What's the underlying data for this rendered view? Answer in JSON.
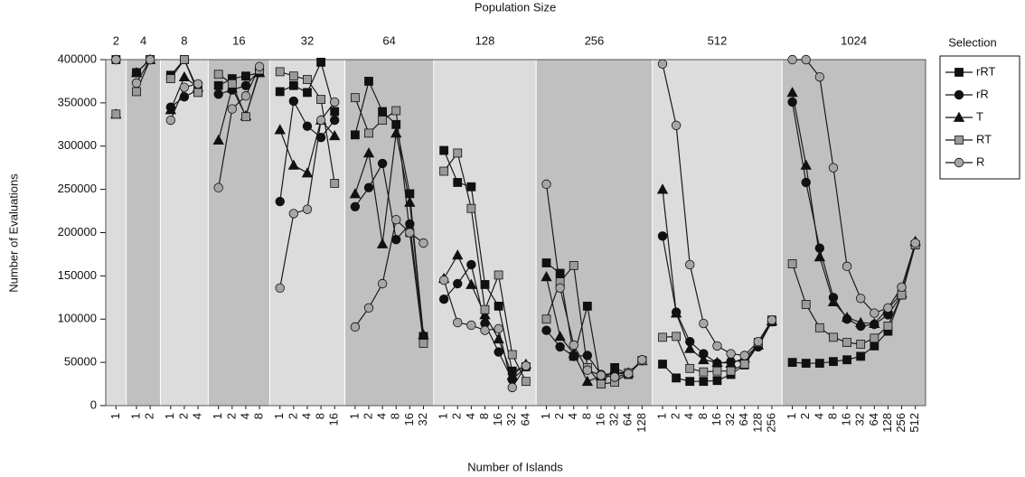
{
  "chart_data": {
    "type": "line",
    "top_axis_label": "Population Size",
    "x_axis_label": "Number of Islands",
    "y_axis_label": "Number of Evaluations",
    "legend_title": "Selection",
    "legend_position": "right",
    "ylim": [
      0,
      400000
    ],
    "yticks": [
      0,
      50000,
      100000,
      150000,
      200000,
      250000,
      300000,
      350000,
      400000
    ],
    "groups": [
      {
        "label": "2",
        "categories": [
          "1"
        ]
      },
      {
        "label": "4",
        "categories": [
          "1",
          "2"
        ]
      },
      {
        "label": "8",
        "categories": [
          "1",
          "2",
          "4"
        ]
      },
      {
        "label": "16",
        "categories": [
          "1",
          "2",
          "4",
          "8"
        ]
      },
      {
        "label": "32",
        "categories": [
          "1",
          "2",
          "4",
          "8",
          "16"
        ]
      },
      {
        "label": "64",
        "categories": [
          "1",
          "2",
          "4",
          "8",
          "16",
          "32"
        ]
      },
      {
        "label": "128",
        "categories": [
          "1",
          "2",
          "4",
          "8",
          "16",
          "32",
          "64"
        ]
      },
      {
        "label": "256",
        "categories": [
          "1",
          "2",
          "4",
          "8",
          "16",
          "32",
          "64",
          "128"
        ]
      },
      {
        "label": "512",
        "categories": [
          "1",
          "2",
          "4",
          "8",
          "16",
          "32",
          "64",
          "128",
          "256"
        ]
      },
      {
        "label": "1024",
        "categories": [
          "1",
          "2",
          "4",
          "8",
          "16",
          "32",
          "64",
          "128",
          "256",
          "512"
        ]
      }
    ],
    "series": [
      {
        "name": "rRT",
        "marker": "square",
        "color": "#111111",
        "values": [
          [
            400000
          ],
          [
            385000,
            400000
          ],
          [
            382000,
            400000,
            365000
          ],
          [
            370000,
            378000,
            381000,
            385000
          ],
          [
            363000,
            370000,
            362000,
            397000,
            340000
          ],
          [
            313000,
            375000,
            340000,
            325000,
            245000,
            80000
          ],
          [
            295000,
            258000,
            253000,
            140000,
            115000,
            40000,
            45000
          ],
          [
            165000,
            153000,
            57000,
            115000,
            25000,
            44000,
            36000,
            52000
          ],
          [
            48000,
            32000,
            28000,
            28000,
            29000,
            36000,
            47000,
            70000,
            97000
          ],
          [
            50000,
            49000,
            49000,
            51000,
            53000,
            57000,
            69000,
            86000,
            128000,
            186000
          ]
        ]
      },
      {
        "name": "rR",
        "marker": "circle",
        "color": "#111111",
        "values": [
          [
            400000
          ],
          [
            385000,
            400000
          ],
          [
            345000,
            357000,
            365000
          ],
          [
            360000,
            365000,
            370000,
            388000
          ],
          [
            236000,
            352000,
            323000,
            310000,
            330000
          ],
          [
            230000,
            252000,
            280000,
            192000,
            210000,
            80000
          ],
          [
            123000,
            141000,
            163000,
            95000,
            62000,
            30000,
            45000
          ],
          [
            87000,
            68000,
            57000,
            58000,
            36000,
            37000,
            37000,
            52000
          ],
          [
            196000,
            108000,
            74000,
            60000,
            49000,
            51000,
            52000,
            68000,
            97000
          ],
          [
            351000,
            258000,
            182000,
            125000,
            100000,
            92000,
            94000,
            105000,
            128000,
            187000
          ]
        ]
      },
      {
        "name": "T",
        "marker": "triangle",
        "color": "#111111",
        "values": [
          [
            337000
          ],
          [
            385000,
            400000
          ],
          [
            342000,
            380000,
            368000
          ],
          [
            307000,
            367000,
            335000,
            385000
          ],
          [
            319000,
            278000,
            269000,
            330000,
            312000
          ],
          [
            245000,
            292000,
            187000,
            315000,
            235000,
            82000
          ],
          [
            147000,
            174000,
            140000,
            105000,
            77000,
            35000,
            48000
          ],
          [
            149000,
            80000,
            60000,
            28000,
            34000,
            38000,
            38000,
            52000
          ],
          [
            250000,
            107000,
            66000,
            53000,
            50000,
            49000,
            55000,
            70000,
            98000
          ],
          [
            362000,
            278000,
            172000,
            120000,
            102000,
            96000,
            95000,
            112000,
            130000,
            190000
          ]
        ]
      },
      {
        "name": "RT",
        "marker": "square",
        "color": "#9a9a9a",
        "values": [
          [
            337000
          ],
          [
            363000,
            400000
          ],
          [
            378000,
            400000,
            362000
          ],
          [
            383000,
            372000,
            334000,
            388000
          ],
          [
            386000,
            381000,
            377000,
            354000,
            257000
          ],
          [
            356000,
            315000,
            330000,
            341000,
            200000,
            72000
          ],
          [
            271000,
            292000,
            228000,
            111000,
            151000,
            59000,
            28000
          ],
          [
            100000,
            143000,
            162000,
            44000,
            25000,
            27000,
            38000,
            52000
          ],
          [
            79000,
            80000,
            43000,
            39000,
            40000,
            40000,
            48000,
            73000,
            99000
          ],
          [
            164000,
            117000,
            90000,
            79000,
            73000,
            71000,
            78000,
            92000,
            128000,
            186000
          ]
        ]
      },
      {
        "name": "R",
        "marker": "circle",
        "color": "#a6a6a6",
        "values": [
          [
            400000
          ],
          [
            373000,
            400000
          ],
          [
            330000,
            368000,
            372000
          ],
          [
            252000,
            343000,
            358000,
            392000
          ],
          [
            136000,
            222000,
            227000,
            330000,
            351000
          ],
          [
            91000,
            113000,
            141000,
            215000,
            200000,
            188000
          ],
          [
            145000,
            96000,
            93000,
            87000,
            89000,
            21000,
            46000
          ],
          [
            256000,
            136000,
            70000,
            41000,
            35000,
            33000,
            37000,
            53000
          ],
          [
            395000,
            324000,
            163000,
            95000,
            69000,
            60000,
            58000,
            74000,
            99000
          ],
          [
            400000,
            400000,
            380000,
            275000,
            161000,
            124000,
            107000,
            113000,
            137000,
            188000
          ]
        ]
      }
    ]
  }
}
